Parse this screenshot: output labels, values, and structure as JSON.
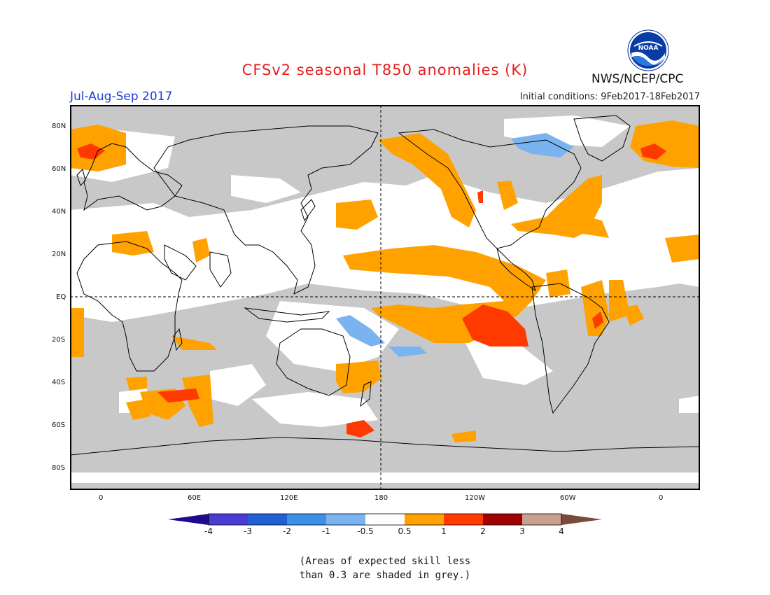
{
  "header": {
    "title": "CFSv2 seasonal T850 anomalies (K)",
    "period": "Jul-Aug-Sep 2017",
    "initial_conditions": "Initial conditions: 9Feb2017-18Feb2017",
    "agency": "NWS/NCEP/CPC",
    "logo_text": "NOAA"
  },
  "map": {
    "lat_labels": [
      "80N",
      "60N",
      "40N",
      "20N",
      "EQ",
      "20S",
      "40S",
      "60S",
      "80S"
    ],
    "lon_labels": [
      "0",
      "60E",
      "120E",
      "180",
      "120W",
      "60W",
      "0"
    ],
    "colors": {
      "grey": "#c8c8c8",
      "orange": "#ffa200",
      "red": "#ff3a00",
      "light_blue": "#7ab4f0",
      "ocean_white": "#ffffff"
    }
  },
  "colorbar": {
    "labels": [
      "-4",
      "-3",
      "-2",
      "-1",
      "-0.5",
      "0.5",
      "1",
      "2",
      "3",
      "4"
    ],
    "colors": [
      "#1e0a8c",
      "#4a3cd2",
      "#2060d0",
      "#3e8fe8",
      "#7ab4f0",
      "#ffffff",
      "#ffa200",
      "#ff3a00",
      "#a00000",
      "#c8a090",
      "#7a4a3a"
    ]
  },
  "note": {
    "line1": "(Areas of expected skill less",
    "line2": "than 0.3 are shaded in grey.)"
  }
}
